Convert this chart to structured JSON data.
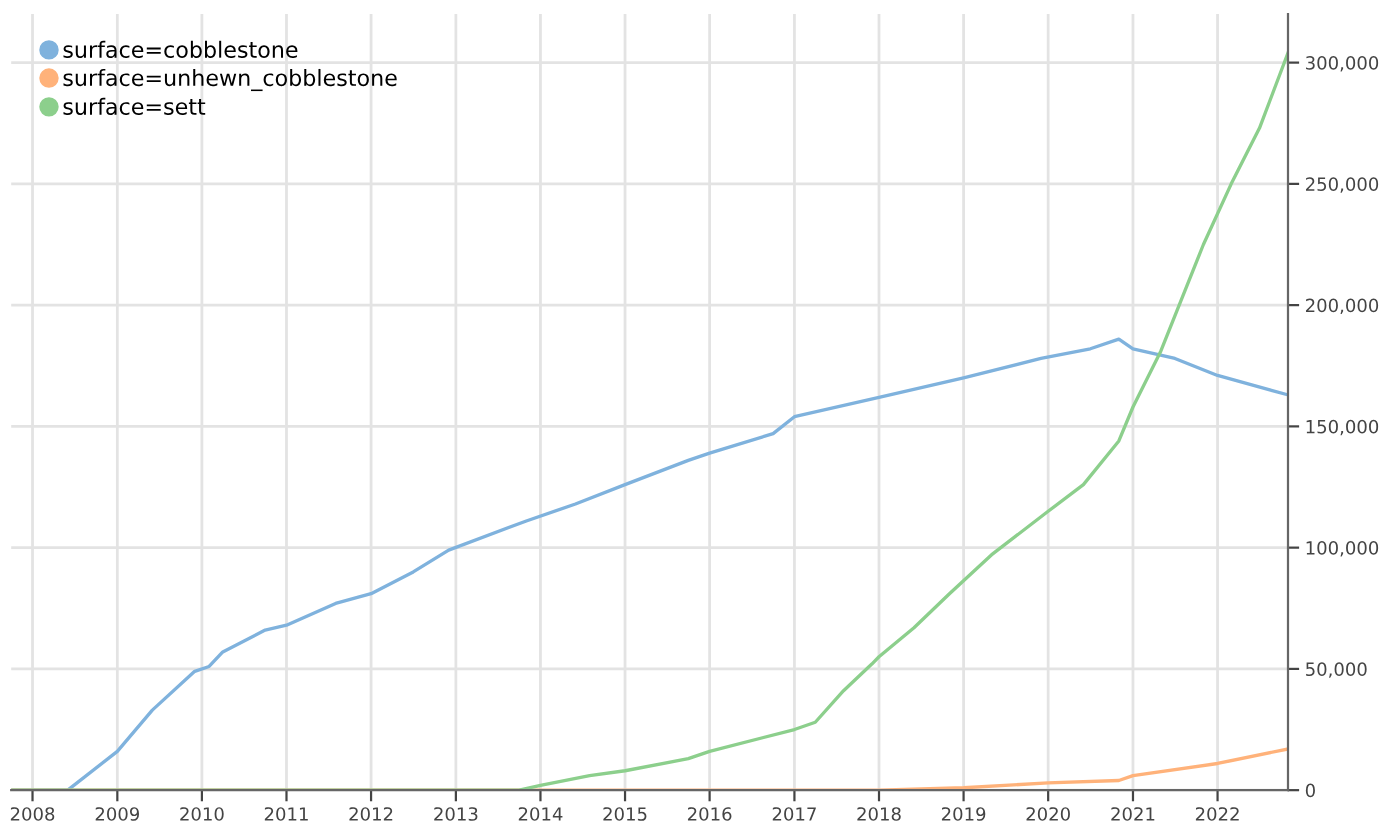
{
  "chart_data": {
    "type": "line",
    "series": [
      {
        "name": "surface=cobblestone",
        "color": "#7fb2dd",
        "x": [
          "2007-10",
          "2008-06",
          "2009-01",
          "2009-06",
          "2009-12",
          "2010-02",
          "2010-04",
          "2010-10",
          "2011-01",
          "2011-08",
          "2012-01",
          "2012-07",
          "2012-12",
          "2013-11",
          "2014-06",
          "2015-01",
          "2015-10",
          "2016-01",
          "2016-10",
          "2017-01",
          "2018-01",
          "2019-01",
          "2019-12",
          "2020-07",
          "2020-11",
          "2021-01",
          "2021-07",
          "2022-01",
          "2022-11"
        ],
        "values": [
          0,
          0,
          16000,
          33000,
          49000,
          51000,
          57000,
          66000,
          68000,
          77000,
          81000,
          90000,
          99000,
          111000,
          118000,
          126000,
          136000,
          139000,
          147000,
          154000,
          162000,
          170000,
          178000,
          182000,
          186000,
          182000,
          178000,
          171000,
          163000
        ]
      },
      {
        "name": "surface=unhewn_cobblestone",
        "color": "#ffb27a",
        "x": [
          "2007-10",
          "2018-01",
          "2019-01",
          "2020-01",
          "2020-11",
          "2021-01",
          "2022-01",
          "2022-11"
        ],
        "values": [
          0,
          0,
          1000,
          3000,
          4000,
          6000,
          11000,
          17000
        ]
      },
      {
        "name": "surface=sett",
        "color": "#8ccf8c",
        "x": [
          "2007-10",
          "2013-10",
          "2014-01",
          "2014-08",
          "2015-01",
          "2015-10",
          "2016-01",
          "2017-01",
          "2017-04",
          "2017-08",
          "2017-12",
          "2018-01",
          "2018-06",
          "2018-11",
          "2019-05",
          "2020-01",
          "2020-06",
          "2020-11",
          "2021-01",
          "2021-05",
          "2021-11",
          "2022-03",
          "2022-07",
          "2022-11"
        ],
        "values": [
          0,
          0,
          2000,
          6000,
          8000,
          13000,
          16000,
          25000,
          28000,
          41000,
          52000,
          55000,
          67000,
          81000,
          97000,
          115000,
          126000,
          144000,
          158000,
          181000,
          225000,
          250000,
          273000,
          304000
        ]
      }
    ],
    "xlim": [
      "2007-10",
      "2022-11"
    ],
    "xticks": [
      {
        "value": "2008-01",
        "label": "2008"
      },
      {
        "value": "2009-01",
        "label": "2009"
      },
      {
        "value": "2010-01",
        "label": "2010"
      },
      {
        "value": "2011-01",
        "label": "2011"
      },
      {
        "value": "2012-01",
        "label": "2012"
      },
      {
        "value": "2013-01",
        "label": "2013"
      },
      {
        "value": "2014-01",
        "label": "2014"
      },
      {
        "value": "2015-01",
        "label": "2015"
      },
      {
        "value": "2016-01",
        "label": "2016"
      },
      {
        "value": "2017-01",
        "label": "2017"
      },
      {
        "value": "2018-01",
        "label": "2018"
      },
      {
        "value": "2019-01",
        "label": "2019"
      },
      {
        "value": "2020-01",
        "label": "2020"
      },
      {
        "value": "2021-01",
        "label": "2021"
      },
      {
        "value": "2022-01",
        "label": "2022"
      }
    ],
    "ylim": [
      0,
      320000
    ],
    "yticks": [
      {
        "value": 0,
        "label": "0"
      },
      {
        "value": 50000,
        "label": "50,000"
      },
      {
        "value": 100000,
        "label": "100,000"
      },
      {
        "value": 150000,
        "label": "150,000"
      },
      {
        "value": 200000,
        "label": "200,000"
      },
      {
        "value": 250000,
        "label": "250,000"
      },
      {
        "value": 300000,
        "label": "300,000"
      }
    ],
    "grid": true,
    "legend": "top left",
    "marker": "none",
    "line_style": "solid"
  }
}
